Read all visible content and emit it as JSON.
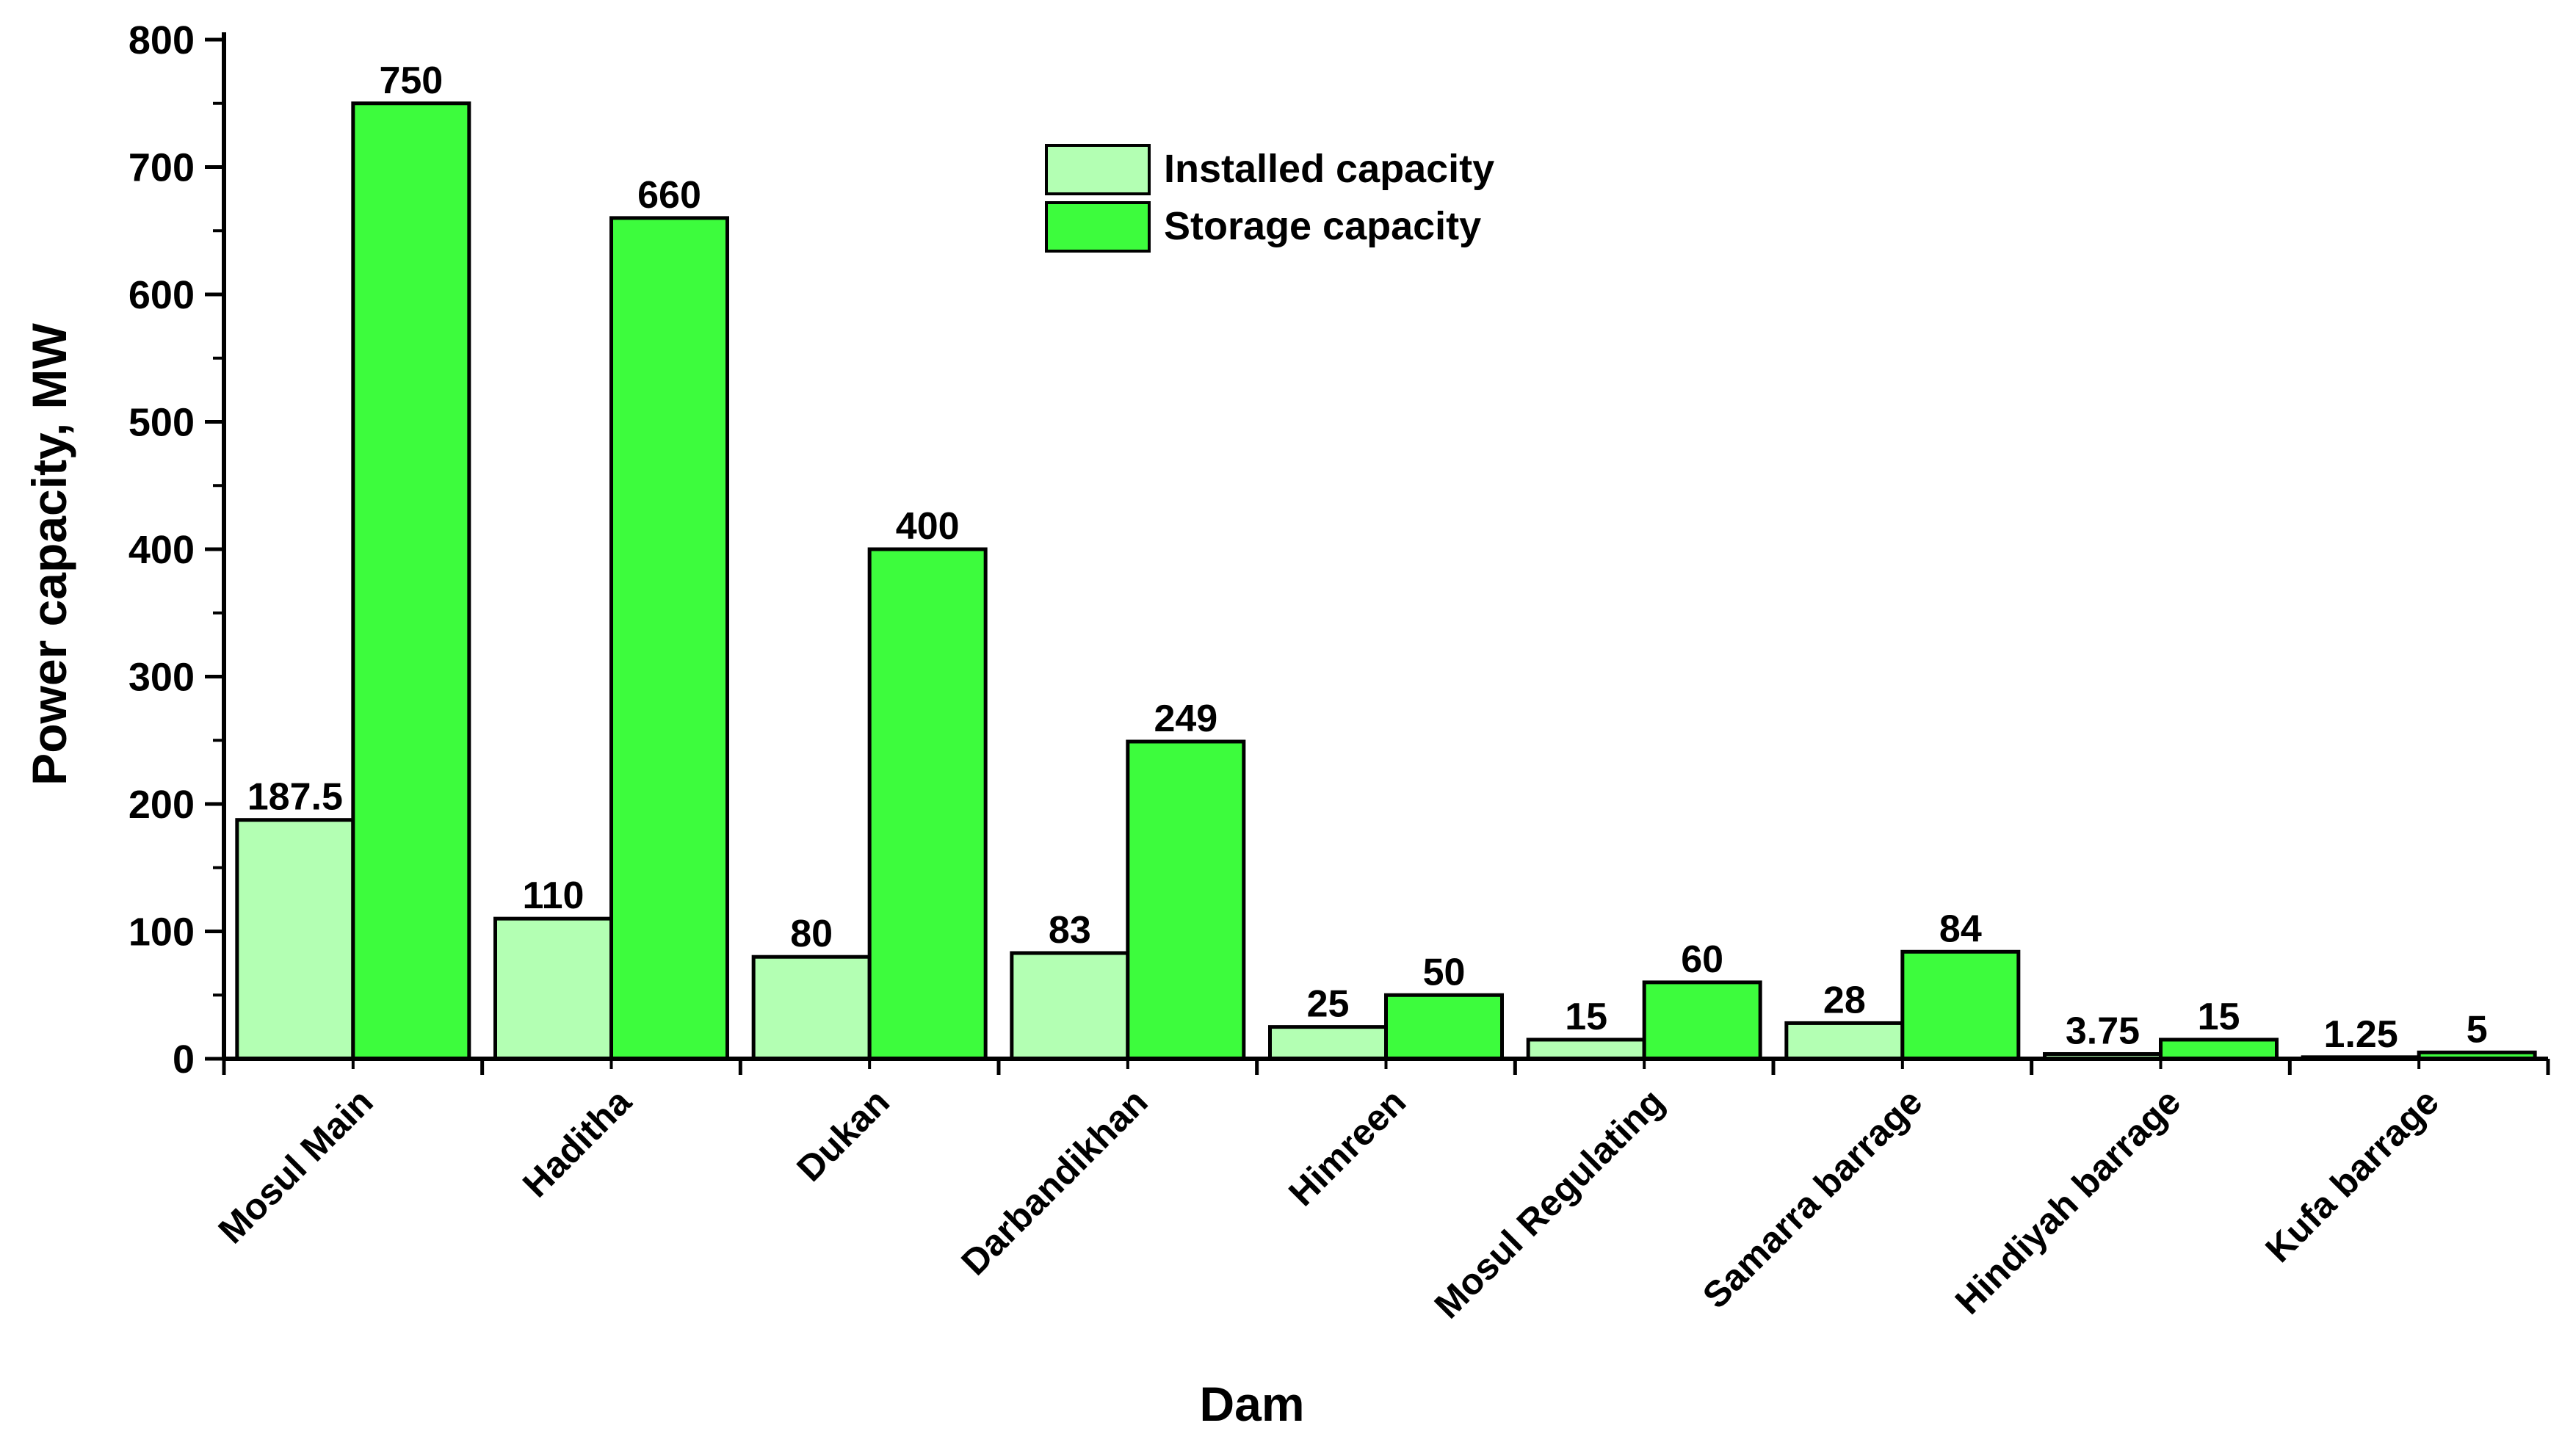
{
  "chart_data": {
    "type": "bar",
    "xlabel": "Dam",
    "ylabel": "Power capacity, MW",
    "ylim": [
      0,
      800
    ],
    "yticks": [
      0,
      100,
      200,
      300,
      400,
      500,
      600,
      700,
      800
    ],
    "categories": [
      "Mosul Main",
      "Haditha",
      "Dukan",
      "Darbandikhan",
      "Himreen",
      "Mosul Regulating",
      "Samarra barrage",
      "Hindiyah barrage",
      "Kufa barrage"
    ],
    "series": [
      {
        "name": "Installed capacity",
        "color": "#b3ffb3",
        "values": [
          187.5,
          110,
          80,
          83,
          25,
          15,
          28,
          3.75,
          1.25
        ],
        "labels": [
          "187.5",
          "110",
          "80",
          "83",
          "25",
          "15",
          "28",
          "3.75",
          "1.25"
        ]
      },
      {
        "name": "Storage capacity",
        "color": "#3dfc3d",
        "values": [
          750,
          660,
          400,
          249,
          50,
          60,
          84,
          15,
          5
        ],
        "labels": [
          "750",
          "660",
          "400",
          "249",
          "50",
          "60",
          "84",
          "15",
          "5"
        ]
      }
    ],
    "legend_position": "top-center",
    "grid": false
  }
}
